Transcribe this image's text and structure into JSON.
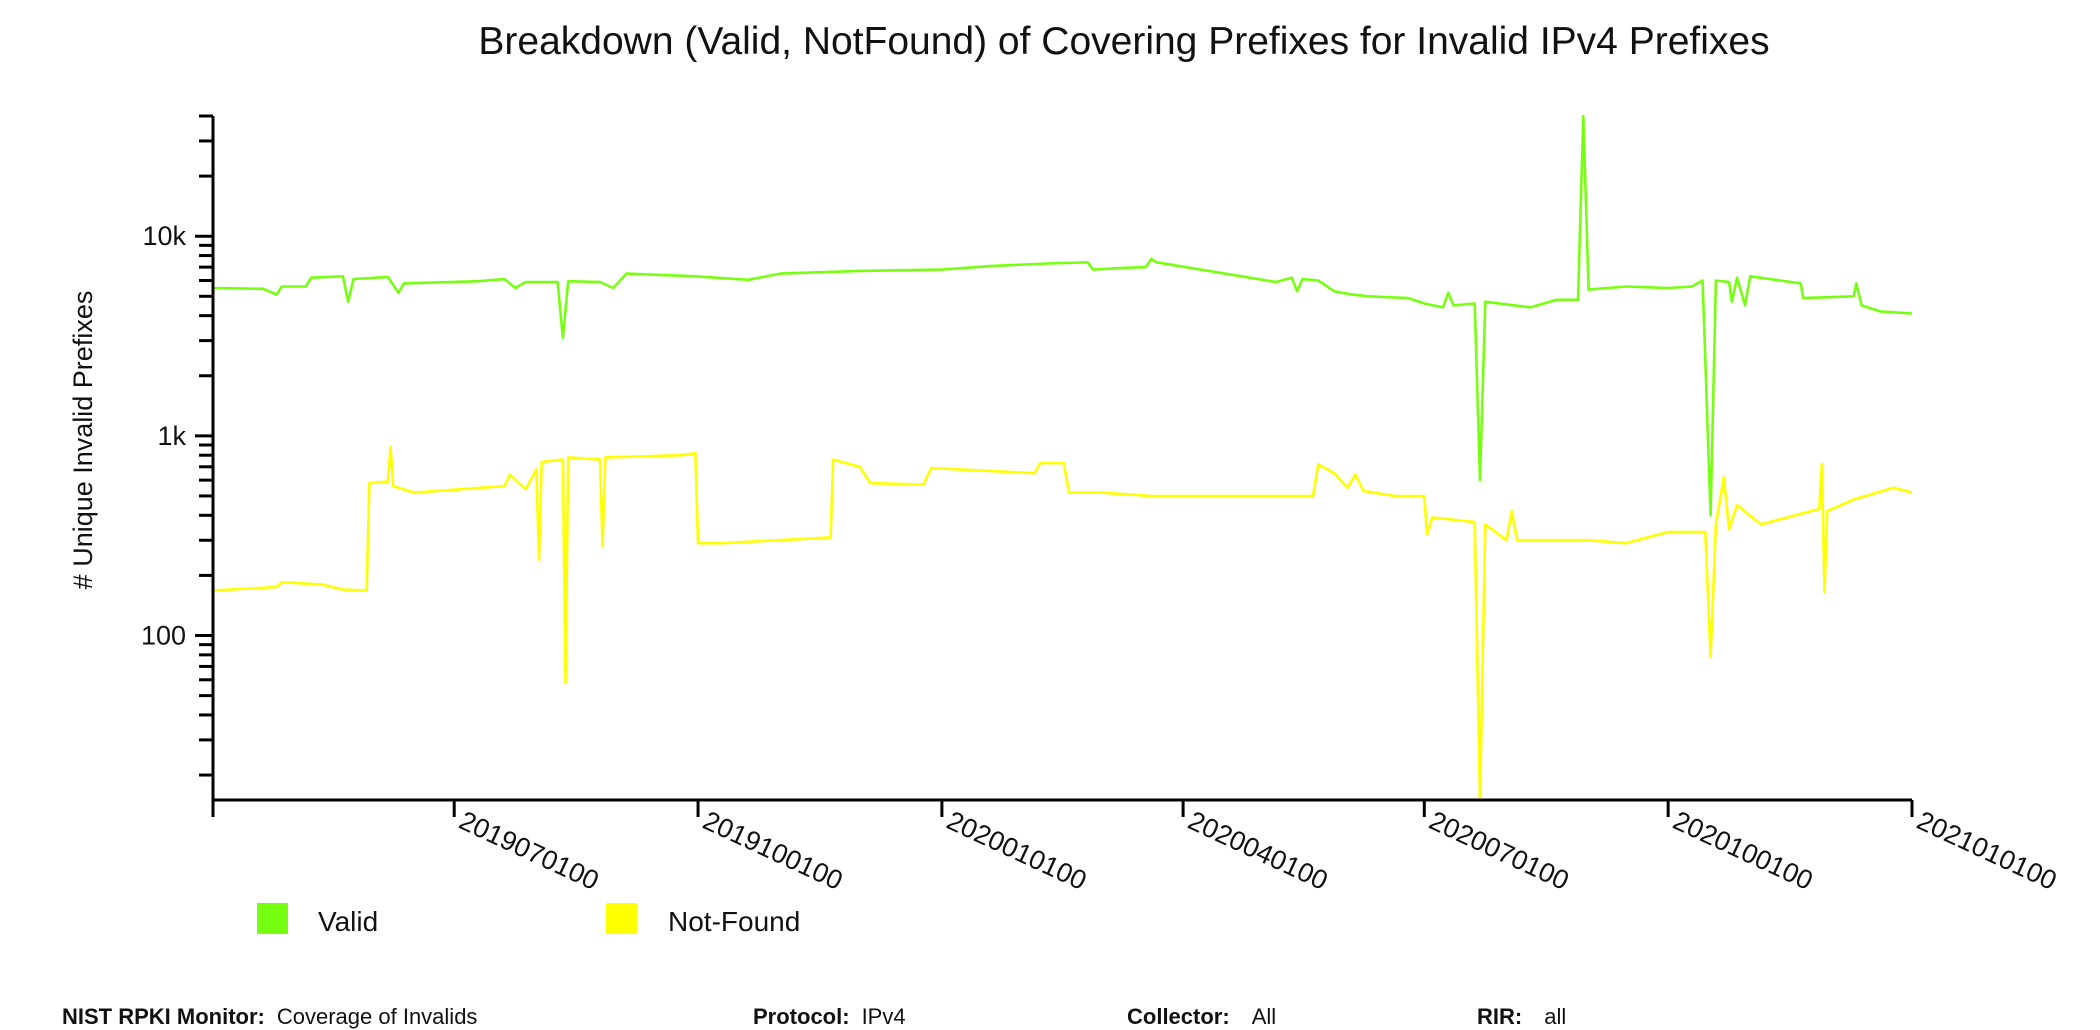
{
  "chart_data": {
    "type": "line",
    "title": "Breakdown (Valid, NotFound) of Covering Prefixes for Invalid IPv4 Prefixes",
    "xlabel": "",
    "ylabel": "# Unique Invalid Prefixes",
    "yscale": "log",
    "ylim": [
      15,
      40000
    ],
    "xlim": [
      "2019-04-01",
      "2021-01-01"
    ],
    "x_tick_labels": [
      "2019070100",
      "2019100100",
      "2020010100",
      "2020040100",
      "2020070100",
      "2020100100",
      "2021010100"
    ],
    "x_ticks": [
      "2019-07-01",
      "2019-10-01",
      "2020-01-01",
      "2020-04-01",
      "2020-07-01",
      "2020-10-01",
      "2021-01-01"
    ],
    "y_tick_labels": [
      {
        "value": 100,
        "label": "100"
      },
      {
        "value": 1000,
        "label": "1k"
      },
      {
        "value": 10000,
        "label": "10k"
      }
    ],
    "grid": false,
    "legend_position": "bottom-left",
    "series": [
      {
        "name": "Valid",
        "color": "#77ff11",
        "points": [
          [
            "2019-04-01",
            5500
          ],
          [
            "2019-04-20",
            5450
          ],
          [
            "2019-04-25",
            5100
          ],
          [
            "2019-04-27",
            5600
          ],
          [
            "2019-05-06",
            5600
          ],
          [
            "2019-05-08",
            6200
          ],
          [
            "2019-05-20",
            6300
          ],
          [
            "2019-05-22",
            4700
          ],
          [
            "2019-05-24",
            6100
          ],
          [
            "2019-06-06",
            6250
          ],
          [
            "2019-06-10",
            5200
          ],
          [
            "2019-06-12",
            5800
          ],
          [
            "2019-07-10",
            5950
          ],
          [
            "2019-07-20",
            6100
          ],
          [
            "2019-07-24",
            5500
          ],
          [
            "2019-07-28",
            5900
          ],
          [
            "2019-08-09",
            5900
          ],
          [
            "2019-08-11",
            3100
          ],
          [
            "2019-08-13",
            5950
          ],
          [
            "2019-08-25",
            5900
          ],
          [
            "2019-08-30",
            5500
          ],
          [
            "2019-09-04",
            6500
          ],
          [
            "2019-09-30",
            6300
          ],
          [
            "2019-10-20",
            6050
          ],
          [
            "2019-11-01",
            6500
          ],
          [
            "2019-12-01",
            6700
          ],
          [
            "2020-01-01",
            6800
          ],
          [
            "2020-01-20",
            7100
          ],
          [
            "2020-02-10",
            7300
          ],
          [
            "2020-02-25",
            7400
          ],
          [
            "2020-02-27",
            6800
          ],
          [
            "2020-03-10",
            6950
          ],
          [
            "2020-03-18",
            7000
          ],
          [
            "2020-03-20",
            7700
          ],
          [
            "2020-03-22",
            7400
          ],
          [
            "2020-05-06",
            5900
          ],
          [
            "2020-05-12",
            6200
          ],
          [
            "2020-05-14",
            5300
          ],
          [
            "2020-05-16",
            6100
          ],
          [
            "2020-05-22",
            6000
          ],
          [
            "2020-05-28",
            5300
          ],
          [
            "2020-06-04",
            5100
          ],
          [
            "2020-06-10",
            5000
          ],
          [
            "2020-06-25",
            4900
          ],
          [
            "2020-07-01",
            4600
          ],
          [
            "2020-07-08",
            4400
          ],
          [
            "2020-07-10",
            5200
          ],
          [
            "2020-07-12",
            4500
          ],
          [
            "2020-07-20",
            4600
          ],
          [
            "2020-07-22",
            600
          ],
          [
            "2020-07-24",
            4700
          ],
          [
            "2020-08-10",
            4400
          ],
          [
            "2020-08-20",
            4800
          ],
          [
            "2020-08-28",
            4800
          ],
          [
            "2020-08-30",
            40000
          ],
          [
            "2020-09-01",
            5400
          ],
          [
            "2020-09-15",
            5600
          ],
          [
            "2020-10-01",
            5500
          ],
          [
            "2020-10-10",
            5600
          ],
          [
            "2020-10-14",
            6000
          ],
          [
            "2020-10-17",
            400
          ],
          [
            "2020-10-19",
            6000
          ],
          [
            "2020-10-24",
            5900
          ],
          [
            "2020-10-25",
            4700
          ],
          [
            "2020-10-27",
            6200
          ],
          [
            "2020-10-30",
            4500
          ],
          [
            "2020-11-01",
            6300
          ],
          [
            "2020-11-20",
            5800
          ],
          [
            "2020-11-21",
            4900
          ],
          [
            "2020-12-10",
            5000
          ],
          [
            "2020-12-11",
            5800
          ],
          [
            "2020-12-13",
            4500
          ],
          [
            "2020-12-20",
            4200
          ],
          [
            "2021-01-01",
            4100
          ]
        ]
      },
      {
        "name": "Not-Found",
        "color": "#ffff00",
        "points": [
          [
            "2019-04-01",
            168
          ],
          [
            "2019-04-25",
            175
          ],
          [
            "2019-04-27",
            185
          ],
          [
            "2019-05-12",
            180
          ],
          [
            "2019-05-20",
            170
          ],
          [
            "2019-05-29",
            168
          ],
          [
            "2019-05-30",
            580
          ],
          [
            "2019-06-06",
            590
          ],
          [
            "2019-06-07",
            880
          ],
          [
            "2019-06-08",
            560
          ],
          [
            "2019-06-16",
            520
          ],
          [
            "2019-07-20",
            560
          ],
          [
            "2019-07-22",
            640
          ],
          [
            "2019-07-28",
            540
          ],
          [
            "2019-08-01",
            680
          ],
          [
            "2019-08-02",
            240
          ],
          [
            "2019-08-03",
            740
          ],
          [
            "2019-08-11",
            760
          ],
          [
            "2019-08-12",
            58
          ],
          [
            "2019-08-13",
            780
          ],
          [
            "2019-08-25",
            760
          ],
          [
            "2019-08-26",
            280
          ],
          [
            "2019-08-27",
            780
          ],
          [
            "2019-09-25",
            800
          ],
          [
            "2019-09-30",
            820
          ],
          [
            "2019-10-01",
            290
          ],
          [
            "2019-10-10",
            290
          ],
          [
            "2019-11-20",
            310
          ],
          [
            "2019-11-21",
            760
          ],
          [
            "2019-12-01",
            700
          ],
          [
            "2019-12-05",
            580
          ],
          [
            "2019-12-25",
            570
          ],
          [
            "2019-12-28",
            690
          ],
          [
            "2020-02-05",
            650
          ],
          [
            "2020-02-07",
            730
          ],
          [
            "2020-02-16",
            730
          ],
          [
            "2020-02-18",
            520
          ],
          [
            "2020-03-01",
            520
          ],
          [
            "2020-03-20",
            500
          ],
          [
            "2020-05-20",
            500
          ],
          [
            "2020-05-22",
            720
          ],
          [
            "2020-05-28",
            650
          ],
          [
            "2020-06-02",
            550
          ],
          [
            "2020-06-05",
            640
          ],
          [
            "2020-06-08",
            530
          ],
          [
            "2020-06-20",
            500
          ],
          [
            "2020-07-01",
            500
          ],
          [
            "2020-07-02",
            320
          ],
          [
            "2020-07-04",
            390
          ],
          [
            "2020-07-20",
            370
          ],
          [
            "2020-07-22",
            15
          ],
          [
            "2020-07-24",
            360
          ],
          [
            "2020-08-01",
            300
          ],
          [
            "2020-08-03",
            420
          ],
          [
            "2020-08-05",
            300
          ],
          [
            "2020-09-01",
            300
          ],
          [
            "2020-09-15",
            290
          ],
          [
            "2020-10-01",
            330
          ],
          [
            "2020-10-15",
            330
          ],
          [
            "2020-10-17",
            78
          ],
          [
            "2020-10-19",
            360
          ],
          [
            "2020-10-22",
            620
          ],
          [
            "2020-10-24",
            340
          ],
          [
            "2020-10-27",
            450
          ],
          [
            "2020-11-05",
            360
          ],
          [
            "2020-11-27",
            430
          ],
          [
            "2020-11-28",
            720
          ],
          [
            "2020-11-29",
            165
          ],
          [
            "2020-11-30",
            420
          ],
          [
            "2020-12-10",
            480
          ],
          [
            "2020-12-25",
            550
          ],
          [
            "2021-01-01",
            520
          ]
        ]
      }
    ]
  },
  "legend": {
    "items": [
      {
        "label": "Valid",
        "color": "#77ff11"
      },
      {
        "label": "Not-Found",
        "color": "#ffff00"
      }
    ]
  },
  "footer": {
    "monitor_label": "NIST RPKI Monitor:",
    "monitor_value": "Coverage of Invalids",
    "protocol_label": "Protocol:",
    "protocol_value": "IPv4",
    "collector_label": "Collector:",
    "collector_value": "All",
    "rir_label": "RIR:",
    "rir_value": "all"
  }
}
